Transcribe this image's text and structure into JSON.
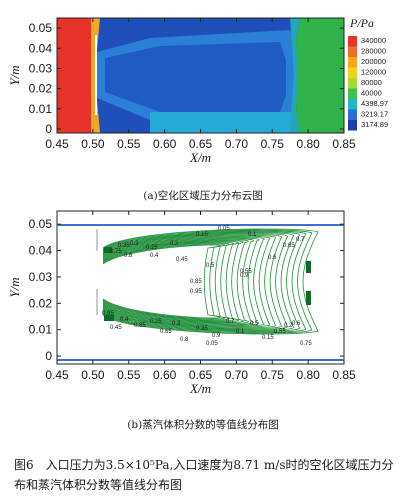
{
  "panel_a": {
    "caption": "(a)空化区域压力分布云图",
    "legend_title": "P/Pa",
    "legend_labels": [
      "340000",
      "280000",
      "200000",
      "120000",
      "80000",
      "40000",
      "4398.97",
      "3219.17",
      "3174.89"
    ],
    "legend_colors": [
      "#e8332a",
      "#f26a2a",
      "#f5a623",
      "#f2d31c",
      "#a9d63a",
      "#3fbf4f",
      "#1fb6c6",
      "#2f6bd8",
      "#1e3fae"
    ]
  },
  "panel_b": {
    "caption": "(b)蒸汽体积分数的等值线分布图",
    "contour_labels": [
      "0.05",
      "0.1",
      "0.15",
      "0.2",
      "0.25",
      "0.3",
      "0.35",
      "0.4",
      "0.45",
      "0.5",
      "0.55",
      "0.6",
      "0.65",
      "0.7",
      "0.75",
      "0.8",
      "0.85",
      "0.9",
      "0.95"
    ]
  },
  "figure_caption": {
    "number": "图6",
    "text": "入口压力为3.5×10⁵Pa,入口速度为8.71 m/s时的空化区域压力分布和蒸汽体积分数等值线分布图"
  },
  "chart_data": [
    {
      "type": "heatmap",
      "title": "",
      "xlabel": "X/m",
      "ylabel": "Y/m",
      "xlim": [
        0.45,
        0.85
      ],
      "ylim": [
        -0.002,
        0.055
      ],
      "x_ticks": [
        "0.45",
        "0.50",
        "0.55",
        "0.60",
        "0.65",
        "0.70",
        "0.75",
        "0.80",
        "0.85"
      ],
      "y_ticks": [
        "0",
        "0.01",
        "0.02",
        "0.03",
        "0.04",
        "0.05"
      ],
      "colorbar_label": "P/Pa",
      "colorbar_levels": [
        340000,
        280000,
        200000,
        120000,
        80000,
        40000,
        4398.97,
        3219.17,
        3174.89
      ]
    },
    {
      "type": "line",
      "title": "",
      "xlabel": "X/m",
      "ylabel": "Y/m",
      "xlim": [
        0.45,
        0.85
      ],
      "ylim": [
        -0.003,
        0.055
      ],
      "x_ticks": [
        "0.45",
        "0.50",
        "0.55",
        "0.60",
        "0.65",
        "0.70",
        "0.75",
        "0.80",
        "0.85"
      ],
      "y_ticks": [
        "0",
        "0.01",
        "0.02",
        "0.03",
        "0.04",
        "0.05"
      ],
      "contour_levels": [
        0.05,
        0.1,
        0.15,
        0.2,
        0.25,
        0.3,
        0.35,
        0.4,
        0.45,
        0.5,
        0.55,
        0.6,
        0.65,
        0.7,
        0.75,
        0.8,
        0.85,
        0.9,
        0.95
      ],
      "walls_y": [
        0,
        0.05
      ]
    }
  ]
}
